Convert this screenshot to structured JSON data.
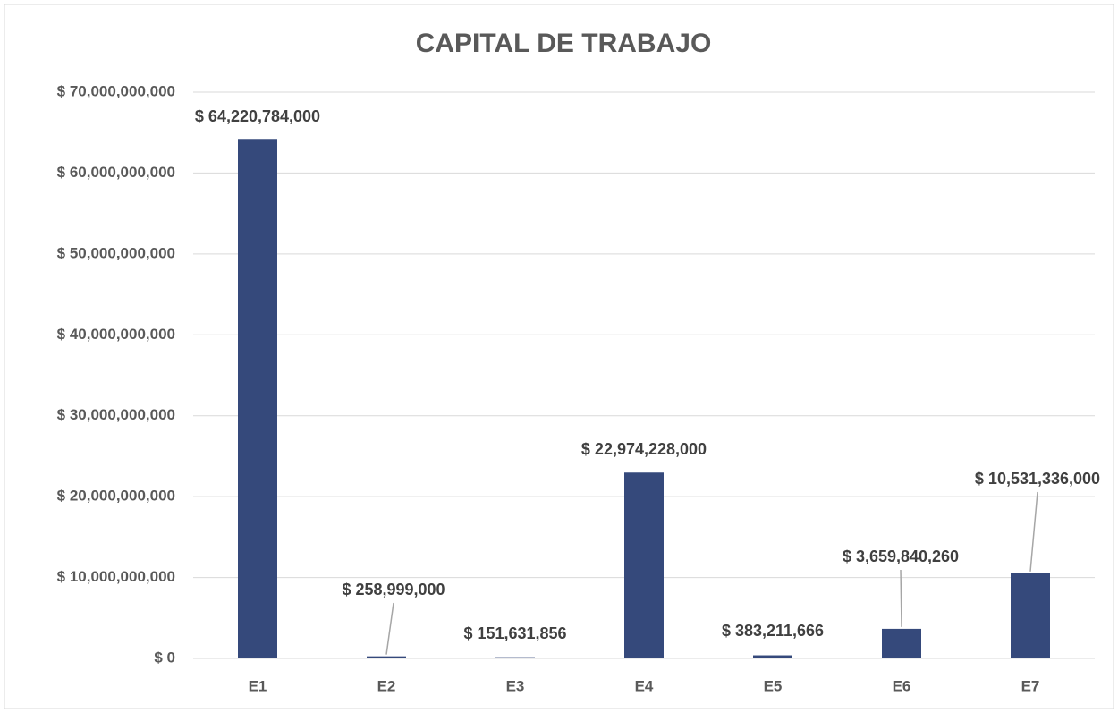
{
  "chart_data": {
    "type": "bar",
    "title": "CAPITAL DE TRABAJO",
    "categories": [
      "E1",
      "E2",
      "E3",
      "E4",
      "E5",
      "E6",
      "E7"
    ],
    "values": [
      64220784000,
      258999000,
      151631856,
      22974228000,
      383211666,
      3659840260,
      10531336000
    ],
    "value_labels": [
      "$ 64,220,784,000",
      "$ 258,999,000",
      "$ 151,631,856",
      "$ 22,974,228,000",
      "$ 383,211,666",
      "$ 3,659,840,260",
      "$ 10,531,336,000"
    ],
    "color": "#35497b",
    "ylim": [
      0,
      70000000000
    ],
    "yticks": [
      {
        "value": 0,
        "label": "$ 0"
      },
      {
        "value": 10000000000,
        "label": "$ 10,000,000,000"
      },
      {
        "value": 20000000000,
        "label": "$ 20,000,000,000"
      },
      {
        "value": 30000000000,
        "label": "$ 30,000,000,000"
      },
      {
        "value": 40000000000,
        "label": "$ 40,000,000,000"
      },
      {
        "value": 50000000000,
        "label": "$ 50,000,000,000"
      },
      {
        "value": 60000000000,
        "label": "$ 60,000,000,000"
      },
      {
        "value": 70000000000,
        "label": "$ 70,000,000,000"
      }
    ],
    "grid": true
  }
}
